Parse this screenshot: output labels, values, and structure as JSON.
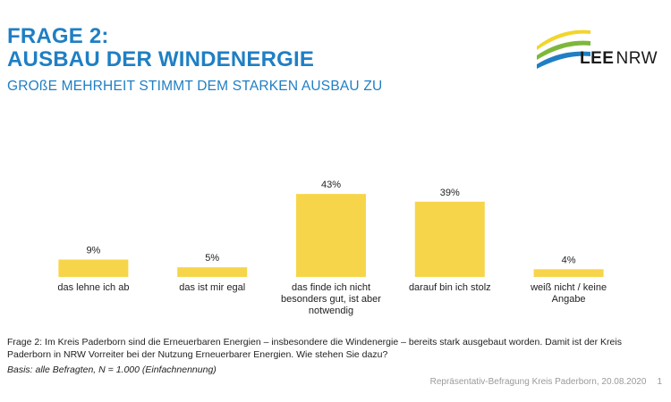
{
  "header": {
    "title_lines": [
      "FRAGE 2:",
      "AUSBAU DER WINDENERGIE"
    ],
    "subtitle": "GROßE MEHRHEIT STIMMT DEM STARKEN AUSBAU ZU"
  },
  "logo": {
    "text_bold": "LEE",
    "text_regular": "NRW",
    "colors": [
      "#f2d62a",
      "#7db83a",
      "#1f7fc4"
    ]
  },
  "colors": {
    "title": "#1f7fc4",
    "bar": "#f7d54a"
  },
  "chart_data": {
    "type": "bar",
    "categories": [
      "das lehne ich ab",
      "das ist mir egal",
      "das finde ich nicht besonders gut, ist aber notwendig",
      "darauf bin ich stolz",
      "weiß nicht / keine Angabe"
    ],
    "category_lines": [
      [
        "das lehne ich ab"
      ],
      [
        "das ist mir egal"
      ],
      [
        "das finde ich nicht",
        "besonders gut, ist aber",
        "notwendig"
      ],
      [
        "darauf bin ich stolz"
      ],
      [
        "weiß nicht / keine",
        "Angabe"
      ]
    ],
    "values": [
      9,
      5,
      43,
      39,
      4
    ],
    "data_labels": [
      "9%",
      "5%",
      "43%",
      "39%",
      "4%"
    ],
    "ylim": [
      0,
      50
    ],
    "grid": false,
    "legend": "none"
  },
  "question": "Frage 2: Im Kreis Paderborn sind die Erneuerbaren Energien – insbesondere die Windenergie – bereits stark ausgebaut worden. Damit ist der Kreis Paderborn in NRW Vorreiter bei der Nutzung Erneuerbarer Energien. Wie stehen Sie dazu?",
  "basis": "Basis: alle Befragten, N = 1.000 (Einfachnennung)",
  "footer": {
    "source": "Repräsentativ-Befragung Kreis Paderborn, 20.08.2020",
    "page": "1"
  }
}
